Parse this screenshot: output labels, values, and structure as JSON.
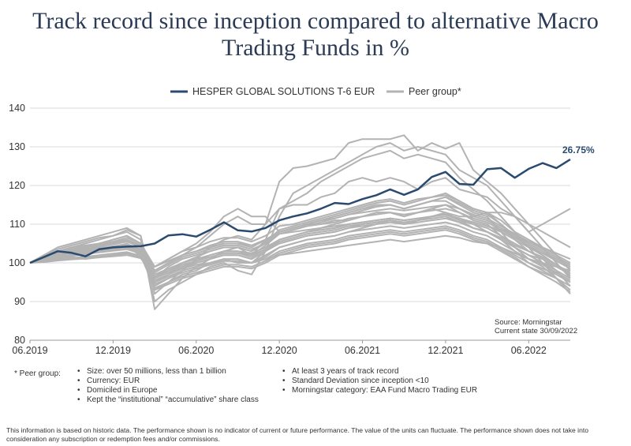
{
  "header": {
    "title_line1": "Track record since inception compared to alternative Macro",
    "title_line2": "Trading Funds in %"
  },
  "colors": {
    "fund": "#2b4a6f",
    "peer": "#b3b3b3",
    "grid": "#d9d9d9"
  },
  "chart_data": {
    "type": "line",
    "title": "Track record since inception compared to alternative Macro Trading Funds in %",
    "xlabel": "",
    "ylabel": "",
    "ylim": [
      80,
      140
    ],
    "yticks": [
      "140",
      "130",
      "120",
      "110",
      "100",
      "90",
      "80"
    ],
    "xticks": [
      "06.2019",
      "12.2019",
      "06.2020",
      "12.2020",
      "06.2021",
      "12.2021",
      "06.2022"
    ],
    "x": [
      "06.2019",
      "07.2019",
      "08.2019",
      "09.2019",
      "10.2019",
      "11.2019",
      "12.2019",
      "01.2020",
      "02.2020",
      "03.2020",
      "04.2020",
      "05.2020",
      "06.2020",
      "07.2020",
      "08.2020",
      "09.2020",
      "10.2020",
      "11.2020",
      "12.2020",
      "01.2021",
      "02.2021",
      "03.2021",
      "04.2021",
      "05.2021",
      "06.2021",
      "07.2021",
      "08.2021",
      "09.2021",
      "10.2021",
      "11.2021",
      "12.2021",
      "01.2022",
      "02.2022",
      "03.2022",
      "04.2022",
      "05.2022",
      "06.2022",
      "07.2022",
      "08.2022",
      "09.2022"
    ],
    "grid": true,
    "legend_position": "top-center",
    "end_label": "26.75%",
    "fund": {
      "name": "HESPER GLOBAL SOLUTIONS T-6 EUR",
      "values": [
        100,
        101.5,
        103,
        102.6,
        101.7,
        103.5,
        104,
        104.2,
        104.3,
        105,
        107.1,
        107.4,
        106.8,
        108.5,
        110.5,
        108.4,
        108.1,
        109,
        111,
        112,
        112.8,
        114,
        115.5,
        115.2,
        116.5,
        117.5,
        119,
        117.6,
        119,
        122.2,
        123.5,
        120.4,
        120.2,
        124.2,
        124.5,
        122,
        124.3,
        125.8,
        124.5,
        126.75
      ]
    },
    "peer": {
      "name": "Peer group*",
      "series": [
        [
          100,
          101,
          102,
          102.5,
          103,
          103.5,
          104,
          104.5,
          103,
          96,
          99,
          101,
          102,
          103,
          104,
          104,
          103,
          105,
          108,
          109,
          110,
          111,
          112,
          113,
          114,
          115,
          115,
          114,
          115,
          116,
          117,
          115,
          113,
          112,
          108,
          104,
          101,
          99,
          96,
          93
        ],
        [
          100,
          100.5,
          101,
          101.5,
          101,
          101.5,
          102,
          102.5,
          102,
          94,
          96,
          98,
          99,
          100,
          101,
          100,
          100,
          102,
          104,
          105,
          106,
          106.5,
          107,
          108,
          109,
          110,
          111,
          110,
          111,
          112,
          113,
          111,
          110,
          108,
          106,
          103,
          100,
          98,
          96,
          92
        ],
        [
          100,
          101,
          102,
          103,
          103.5,
          104,
          104,
          105,
          103,
          93,
          95,
          97,
          98,
          100,
          101,
          101,
          100,
          103,
          106,
          107,
          108,
          109,
          110,
          111,
          112,
          113,
          113,
          112,
          113,
          114,
          115,
          113,
          111,
          110,
          107,
          104,
          102,
          100,
          97,
          95
        ],
        [
          100,
          100.8,
          101.5,
          102,
          102.5,
          103,
          103.5,
          104,
          102,
          97,
          98,
          99,
          100,
          101,
          102,
          102,
          101,
          103,
          105,
          106,
          107,
          107.5,
          108,
          109,
          110,
          110.5,
          111,
          110,
          111,
          112,
          112.5,
          111,
          109,
          108,
          106,
          104,
          102,
          101,
          99,
          97
        ],
        [
          100,
          101.5,
          102.5,
          103,
          104,
          104.5,
          105,
          106,
          104,
          98,
          100,
          102,
          103,
          104,
          105,
          105,
          104,
          106,
          108,
          109,
          110,
          111,
          112,
          113,
          114,
          114.5,
          115,
          114,
          115,
          116,
          116,
          114,
          112,
          111,
          109,
          107,
          105,
          103,
          101,
          99
        ],
        [
          100,
          100.3,
          100.8,
          101,
          101.3,
          101.6,
          102,
          102.4,
          101.5,
          95,
          96.5,
          98,
          99,
          100,
          100.5,
          100.5,
          100,
          101,
          103,
          104,
          105,
          105.5,
          106,
          107,
          107.5,
          108,
          108.5,
          108,
          108.5,
          109,
          109.5,
          108.5,
          107,
          106,
          104,
          102,
          100,
          98.5,
          97,
          95
        ],
        [
          100,
          101.2,
          102.2,
          103,
          103.5,
          104.2,
          104.8,
          105.5,
          104,
          99,
          101,
          103,
          104,
          105.5,
          106.5,
          106.5,
          105.5,
          107,
          109.5,
          110,
          111,
          112,
          113,
          114,
          115,
          116,
          116.5,
          115.5,
          116.5,
          117,
          117.5,
          116,
          114,
          113,
          111,
          108,
          106,
          104,
          102,
          100
        ],
        [
          100,
          100.6,
          101.3,
          101.8,
          102.2,
          102.8,
          103.2,
          103.6,
          102.5,
          96,
          97.5,
          99,
          100.5,
          101.5,
          102.5,
          102.5,
          101.5,
          103.5,
          106,
          107,
          108,
          108.5,
          109,
          110,
          110.5,
          111,
          111.5,
          111,
          111.5,
          112,
          112.5,
          111.5,
          110,
          109,
          107,
          105,
          103,
          101.5,
          99.5,
          97.5
        ],
        [
          100,
          101.8,
          103,
          104,
          104.5,
          105,
          105.5,
          106.5,
          105,
          96,
          98,
          100,
          101.5,
          103,
          104,
          104,
          103,
          105.5,
          108.5,
          109.5,
          110.5,
          111.5,
          112.5,
          113.5,
          114.5,
          115.5,
          116,
          115,
          116,
          117,
          118,
          116,
          114,
          113,
          110,
          106,
          103,
          101,
          98,
          94
        ],
        [
          100,
          100.4,
          100.9,
          101.3,
          101.6,
          102,
          102.4,
          102.8,
          101.8,
          93.5,
          95,
          96.5,
          97.5,
          98.5,
          99.5,
          99.5,
          99,
          100.5,
          102.5,
          103.5,
          104.5,
          105,
          105.5,
          106.5,
          107,
          107.5,
          108,
          107.5,
          108,
          108.5,
          109,
          108,
          106.5,
          105.5,
          103.5,
          101.5,
          99,
          97,
          95,
          92.5
        ],
        [
          100,
          101,
          102,
          102.7,
          103.2,
          103.8,
          104.3,
          104.9,
          103.5,
          97.5,
          99.5,
          101.5,
          102.5,
          103.5,
          104.5,
          104.5,
          103.5,
          105,
          107.5,
          108.5,
          109.5,
          110,
          110.5,
          111.5,
          112,
          112.5,
          113,
          112.5,
          113,
          113.5,
          114,
          113,
          111.5,
          110.5,
          108.5,
          106.5,
          104.5,
          102.5,
          100.5,
          98.5
        ],
        [
          100,
          100.7,
          101.6,
          102.3,
          102.9,
          103.4,
          103.9,
          104.4,
          103.2,
          95.5,
          97,
          98.5,
          100,
          101,
          102,
          102,
          101,
          103,
          105.5,
          106.5,
          107.5,
          108,
          108.5,
          109.5,
          110,
          110.5,
          111,
          110.5,
          111,
          111.5,
          112,
          110.5,
          109,
          108,
          106,
          104,
          102,
          100,
          98,
          96
        ],
        [
          100,
          101.1,
          101.9,
          102.4,
          102.9,
          103.3,
          103.7,
          104.2,
          103,
          96.5,
          98,
          99.5,
          100.5,
          101.5,
          102.5,
          102.5,
          102,
          103.5,
          105,
          106,
          107,
          107.5,
          108,
          109,
          109.5,
          110,
          110.5,
          110,
          110.5,
          111,
          111.5,
          110.5,
          109,
          108,
          106.5,
          104.5,
          103,
          101.5,
          99.5,
          97
        ],
        [
          100,
          100.5,
          101.2,
          101.8,
          102.3,
          102.7,
          103.1,
          103.5,
          102.4,
          97,
          98.5,
          100,
          101,
          102,
          103,
          103,
          102.5,
          104,
          106,
          107,
          108,
          108.5,
          109,
          110,
          110.5,
          111,
          111.5,
          111,
          111.5,
          112,
          112.5,
          111.5,
          110.5,
          109.5,
          108,
          106,
          104,
          102.5,
          101,
          99
        ],
        [
          100,
          100.9,
          101.8,
          102.5,
          103,
          103.6,
          104.1,
          104.7,
          103.4,
          94.5,
          96,
          97.5,
          98.5,
          99.5,
          100.5,
          100.5,
          100,
          101.5,
          104,
          105,
          106,
          106.5,
          107,
          108,
          108.5,
          109,
          109.5,
          109,
          109.5,
          110,
          110.5,
          109.5,
          108,
          107,
          105,
          103,
          101,
          99.5,
          97.5,
          95.5
        ],
        [
          100,
          101.3,
          102.5,
          103.3,
          103.9,
          104.5,
          105,
          105.6,
          104.2,
          98,
          100,
          102,
          103,
          104.5,
          105.5,
          105.5,
          104.5,
          106,
          108,
          109,
          110,
          111,
          111.5,
          112.5,
          113,
          113.5,
          114,
          113.5,
          114,
          114.5,
          115,
          114,
          112.5,
          111.5,
          109.5,
          107.5,
          105.5,
          103.5,
          101.5,
          99.5
        ],
        [
          100,
          100.2,
          100.6,
          100.9,
          101.1,
          101.4,
          101.7,
          102,
          101.2,
          96.5,
          97.5,
          98.5,
          99.5,
          100,
          100.5,
          100.5,
          100,
          101,
          102,
          102.5,
          103,
          103.5,
          104,
          104.5,
          105,
          105.5,
          106,
          105.5,
          106,
          106.5,
          107,
          106.5,
          105.5,
          105,
          104,
          102.5,
          101,
          100,
          99,
          98
        ],
        [
          100,
          101.6,
          102.8,
          103.6,
          104.2,
          104.8,
          105.4,
          106,
          104.6,
          95,
          97,
          99,
          100.5,
          102,
          103,
          103,
          102,
          104.5,
          107.5,
          108.5,
          109.5,
          110.5,
          111.5,
          112.5,
          113.5,
          114.5,
          115,
          114,
          115,
          116,
          117,
          115.5,
          113.5,
          112.5,
          110,
          107,
          104,
          102,
          99.5,
          96.5
        ],
        [
          100,
          100.6,
          101.4,
          102,
          102.5,
          103,
          103.4,
          103.8,
          102.8,
          99,
          100.5,
          102,
          103,
          104,
          105,
          105,
          104.5,
          106,
          107.5,
          108,
          108.5,
          109,
          109.5,
          110,
          110.5,
          111,
          111.5,
          111,
          111.5,
          112,
          112.5,
          111.5,
          110.5,
          109.5,
          108.5,
          107,
          105.5,
          104,
          102.5,
          101
        ],
        [
          100,
          101,
          101.7,
          102.2,
          102.6,
          103.1,
          103.5,
          104,
          102.9,
          93,
          94.5,
          96,
          97,
          98,
          99,
          99,
          98.5,
          100,
          102,
          103,
          104,
          104.5,
          105,
          106,
          106.5,
          107,
          107.5,
          107,
          107.5,
          108,
          108.5,
          107.5,
          106,
          105,
          103,
          101,
          99,
          97.5,
          96,
          94
        ],
        [
          100,
          102,
          103.5,
          104.5,
          105.5,
          106.5,
          107,
          108,
          106,
          90,
          93,
          95,
          97,
          99,
          100,
          98,
          97,
          103,
          112,
          118,
          120,
          122,
          124,
          126,
          128,
          130,
          131,
          129,
          130,
          129,
          128,
          124,
          122,
          120,
          116,
          112,
          108,
          104,
          100,
          96
        ],
        [
          100,
          101.5,
          103,
          104,
          105,
          106,
          107,
          108.5,
          107,
          88,
          92,
          96,
          99,
          101,
          103,
          104,
          102,
          106,
          114,
          116,
          118,
          121,
          123,
          125,
          127,
          128,
          129,
          127,
          128,
          127,
          126,
          122,
          119,
          116,
          112,
          108,
          104,
          100,
          96,
          92
        ],
        [
          100,
          102,
          104,
          105,
          106,
          107,
          108,
          109,
          107,
          92,
          95,
          98,
          101,
          104,
          106,
          107,
          106,
          110,
          121,
          124.5,
          125,
          126,
          127,
          131,
          132,
          132,
          132,
          133,
          129,
          131,
          129.5,
          131,
          124,
          121,
          118,
          114,
          110,
          106,
          102,
          98
        ],
        [
          100,
          101,
          102,
          103,
          104,
          105,
          106,
          107,
          105,
          98,
          100,
          102,
          104,
          107,
          110,
          112,
          110,
          110,
          114,
          115,
          115,
          117,
          118,
          121,
          122,
          121,
          122,
          121,
          119,
          121,
          122,
          119,
          118,
          117,
          114,
          112,
          110,
          108,
          106,
          104
        ],
        [
          100,
          101,
          102,
          103,
          104,
          105,
          106,
          107,
          105,
          99,
          101,
          103,
          105,
          108,
          112,
          114,
          112,
          112,
          108,
          109,
          110,
          110,
          111,
          111,
          112,
          113,
          113,
          112,
          113,
          114,
          113,
          112,
          112,
          113,
          113,
          112,
          108,
          110,
          112,
          114
        ]
      ]
    },
    "source_line1": "Source: Morningstar",
    "source_line2": "Current state 30/09/2022"
  },
  "peer_notes": {
    "label": "* Peer group:",
    "col1": [
      "Size: over 50 millions, less than 1 billion",
      "Currency: EUR",
      "Domiciled in Europe",
      "Kept the “institutional” “accumulative” share class"
    ],
    "col2": [
      "At least 3 years of track record",
      "Standard Deviation since inception <10",
      "Morningstar category: EAA Fund Macro Trading EUR"
    ]
  },
  "disclaimer": "This information is based on historic data. The performance shown is no indicator of current or future performance. The value of the units can fluctuate. The performance shown does not take into consideration any subscription or redemption fees and/or commissions."
}
